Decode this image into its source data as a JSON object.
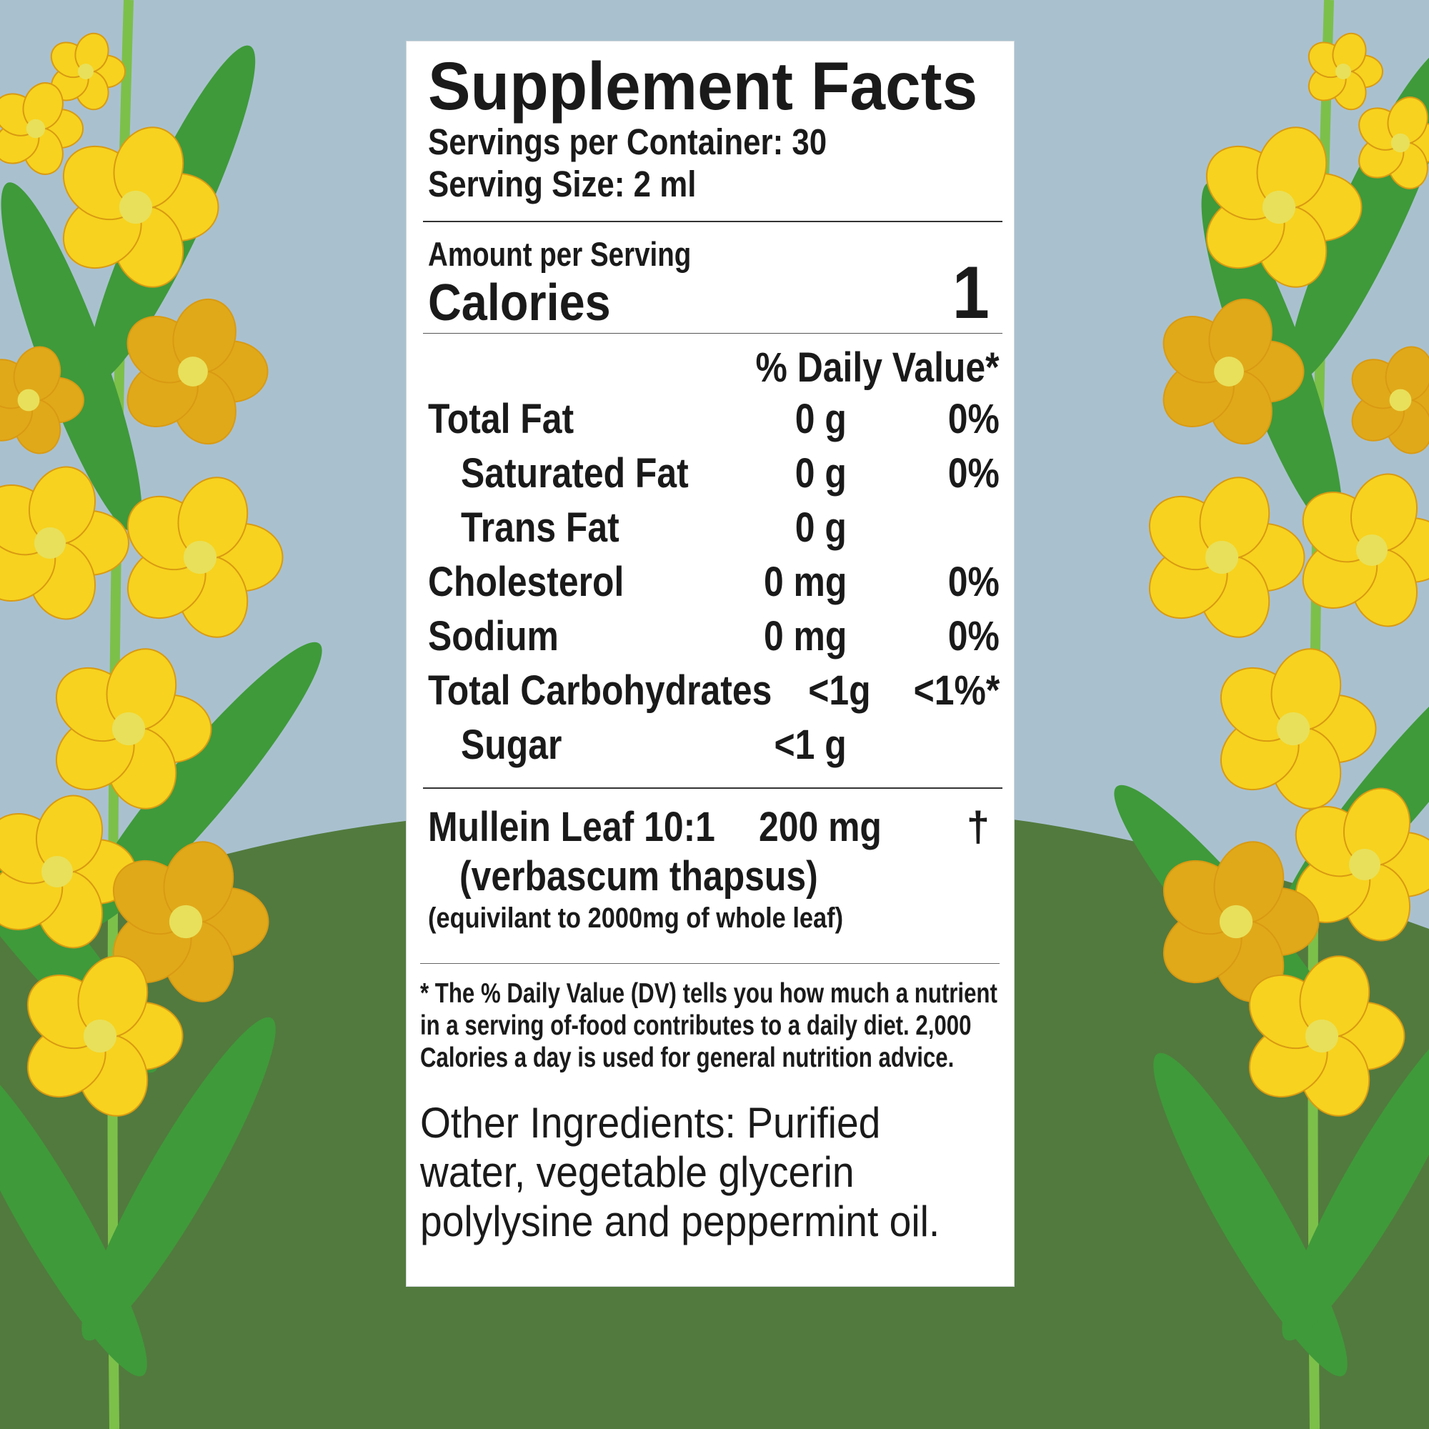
{
  "label": {
    "title": "Supplement Facts",
    "servings_per_container": "Servings per Container: 30",
    "serving_size": "Serving Size: 2 ml",
    "amount_per_serving": "Amount  per  Serving",
    "calories_label": "Calories",
    "calories_value": "1",
    "dv_header": "% Daily Value*",
    "nutrients": [
      {
        "name": "Total Fat",
        "amount": "0 g",
        "dv": "0%",
        "indent": false
      },
      {
        "name": "Saturated Fat",
        "amount": "0 g",
        "dv": "0%",
        "indent": true
      },
      {
        "name": "Trans Fat",
        "amount": "0 g",
        "dv": "",
        "indent": true
      },
      {
        "name": "Cholesterol",
        "amount": "0 mg",
        "dv": "0%",
        "indent": false
      },
      {
        "name": "Sodium",
        "amount": "0 mg",
        "dv": "0%",
        "indent": false
      },
      {
        "name": "Total Carbohydrates",
        "amount": "<1g",
        "dv": "<1%*",
        "indent": false
      },
      {
        "name": "Sugar",
        "amount": "<1 g",
        "dv": "",
        "indent": true
      }
    ],
    "ingredient": {
      "name": "Mullein Leaf 10:1",
      "amount": "200 mg",
      "dv": "†",
      "latin": "(verbascum thapsus)",
      "note": "(equivilant to 2000mg of whole leaf)"
    },
    "footnote": [
      "* The % Daily Value (DV) tells you how much a nutrient",
      "in a serving of-food contributes to a daily diet. 2,000",
      "Calories a day is used for general nutrition advice."
    ],
    "other_ingredients": [
      "Other Ingredients:  Purified",
      "water, vegetable glycerin",
      "polylysine and peppermint oil."
    ]
  },
  "colors": {
    "sky": "#a9c1cf",
    "hill": "#527a3e",
    "flower": "#f7d21e",
    "flower_dark": "#e0a91a",
    "leaf": "#3f9a3a"
  }
}
